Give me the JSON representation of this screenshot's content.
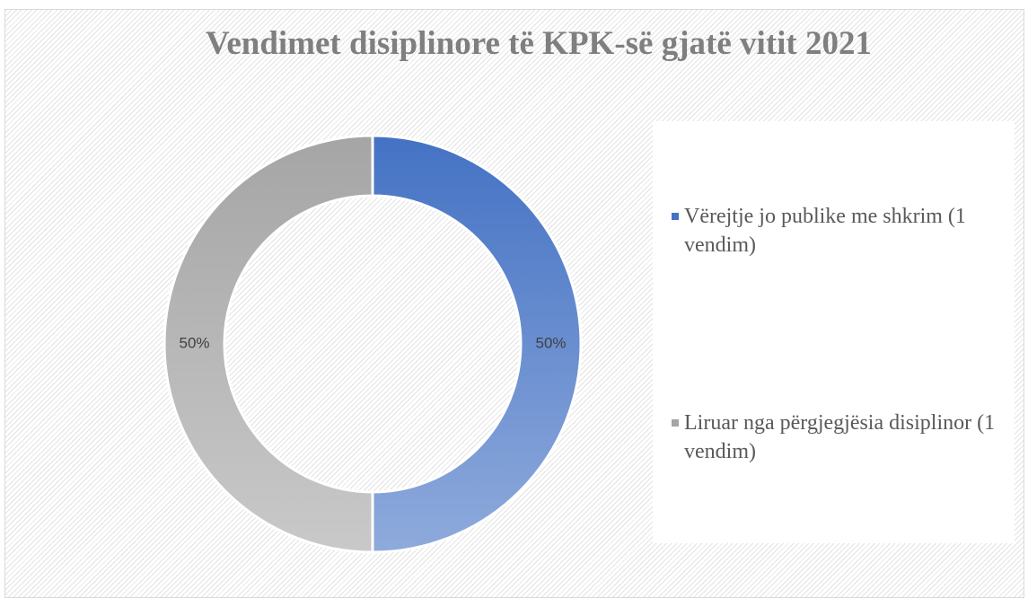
{
  "chart_data": {
    "type": "donut",
    "title": "Vendimet disiplinore të KPK-së gjatë vitit 2021",
    "categories": [
      "Vërejtje jo publike me shkrim (1 vendim)",
      "Liruar nga përgjegjësia disiplinor (1 vendim)"
    ],
    "values": [
      50,
      50
    ],
    "value_labels": [
      "50%",
      "50%"
    ],
    "colors": [
      "#4472c4",
      "#a5a5a5"
    ],
    "legend": "right"
  }
}
